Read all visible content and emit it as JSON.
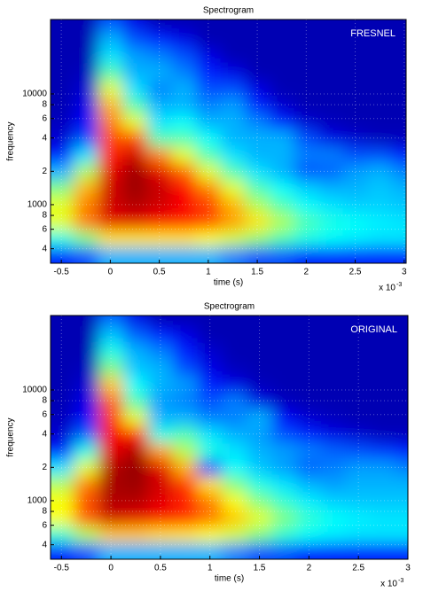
{
  "chart_data": [
    {
      "type": "heatmap",
      "title": "Spectrogram",
      "annotation": "FRESNEL",
      "x_label": "time (s)",
      "y_label": "frequency",
      "x_offset_label": "x 10",
      "x_offset_exponent": "-3",
      "colormap": "jet",
      "yscale": "log",
      "grid": true,
      "xlim": [
        -0.61,
        3.02
      ],
      "ylim": [
        296,
        47000
      ],
      "xticks": [
        -0.5,
        0,
        0.5,
        1,
        1.5,
        2,
        2.5,
        3
      ],
      "yticks": [
        {
          "value": 400,
          "label": "4"
        },
        {
          "value": 600,
          "label": "6"
        },
        {
          "value": 800,
          "label": "8"
        },
        1000,
        {
          "value": 2000,
          "label": "2"
        },
        {
          "value": 4000,
          "label": "4"
        },
        {
          "value": 6000,
          "label": "6"
        },
        {
          "value": 8000,
          "label": "8"
        },
        10000
      ],
      "x": [
        -0.5,
        -0.25,
        0,
        0.25,
        0.5,
        0.75,
        1,
        1.25,
        1.5,
        1.75,
        2,
        2.25,
        2.5,
        2.75,
        3
      ],
      "y": [
        350,
        500,
        700,
        1000,
        1400,
        2000,
        2800,
        4000,
        5600,
        8000,
        11000,
        16000,
        22000,
        32000,
        45000
      ],
      "z": [
        [
          0.15,
          0.2,
          0.3,
          0.3,
          0.3,
          0.3,
          0.3,
          0.25,
          0.2,
          0.2,
          0.15,
          0.15,
          0.15,
          0.15,
          0.15
        ],
        [
          0.4,
          0.5,
          0.65,
          0.65,
          0.65,
          0.65,
          0.62,
          0.58,
          0.52,
          0.45,
          0.4,
          0.38,
          0.36,
          0.35,
          0.35
        ],
        [
          0.6,
          0.75,
          0.9,
          0.9,
          0.88,
          0.85,
          0.8,
          0.72,
          0.65,
          0.55,
          0.45,
          0.4,
          0.38,
          0.36,
          0.35
        ],
        [
          0.6,
          0.75,
          0.92,
          0.95,
          0.92,
          0.88,
          0.82,
          0.7,
          0.55,
          0.45,
          0.38,
          0.35,
          0.33,
          0.33,
          0.32
        ],
        [
          0.5,
          0.7,
          0.92,
          0.97,
          0.93,
          0.87,
          0.75,
          0.6,
          0.45,
          0.38,
          0.33,
          0.3,
          0.3,
          0.32,
          0.3
        ],
        [
          0.3,
          0.55,
          0.9,
          0.97,
          0.9,
          0.78,
          0.6,
          0.45,
          0.35,
          0.3,
          0.2,
          0.22,
          0.28,
          0.3,
          0.25
        ],
        [
          0.15,
          0.35,
          0.85,
          0.92,
          0.75,
          0.6,
          0.45,
          0.35,
          0.3,
          0.3,
          0.25,
          0.25,
          0.2,
          0.2,
          0.15
        ],
        [
          0.08,
          0.2,
          0.8,
          0.8,
          0.45,
          0.45,
          0.38,
          0.3,
          0.3,
          0.3,
          0.2,
          0.1,
          0.08,
          0.06,
          0.06
        ],
        [
          0.06,
          0.12,
          0.75,
          0.6,
          0.35,
          0.38,
          0.3,
          0.3,
          0.25,
          0.15,
          0.08,
          0.06,
          0.05,
          0.05,
          0.05
        ],
        [
          0.05,
          0.1,
          0.7,
          0.45,
          0.3,
          0.3,
          0.25,
          0.28,
          0.15,
          0.08,
          0.05,
          0.05,
          0.05,
          0.05,
          0.05
        ],
        [
          0.05,
          0.08,
          0.6,
          0.35,
          0.25,
          0.3,
          0.2,
          0.2,
          0.1,
          0.05,
          0.05,
          0.05,
          0.05,
          0.05,
          0.05
        ],
        [
          0.05,
          0.06,
          0.45,
          0.3,
          0.3,
          0.25,
          0.15,
          0.1,
          0.05,
          0.05,
          0.05,
          0.05,
          0.05,
          0.05,
          0.05
        ],
        [
          0.05,
          0.05,
          0.35,
          0.28,
          0.25,
          0.2,
          0.1,
          0.05,
          0.05,
          0.05,
          0.05,
          0.05,
          0.05,
          0.05,
          0.05
        ],
        [
          0.05,
          0.05,
          0.3,
          0.2,
          0.15,
          0.1,
          0.05,
          0.05,
          0.05,
          0.05,
          0.05,
          0.05,
          0.05,
          0.05,
          0.05
        ],
        [
          0.05,
          0.05,
          0.2,
          0.1,
          0.05,
          0.05,
          0.05,
          0.05,
          0.05,
          0.05,
          0.05,
          0.05,
          0.05,
          0.05,
          0.05
        ]
      ]
    },
    {
      "type": "heatmap",
      "title": "Spectrogram",
      "annotation": "ORIGINAL",
      "x_label": "time (s)",
      "y_label": "frequency",
      "x_offset_label": "x 10",
      "x_offset_exponent": "-3",
      "colormap": "jet",
      "yscale": "log",
      "grid": true,
      "xlim": [
        -0.61,
        3.0
      ],
      "ylim": [
        296,
        47000
      ],
      "xticks": [
        -0.5,
        0,
        0.5,
        1,
        1.5,
        2,
        2.5,
        3
      ],
      "yticks": [
        {
          "value": 400,
          "label": "4"
        },
        {
          "value": 600,
          "label": "6"
        },
        {
          "value": 800,
          "label": "8"
        },
        1000,
        {
          "value": 2000,
          "label": "2"
        },
        {
          "value": 4000,
          "label": "4"
        },
        {
          "value": 6000,
          "label": "6"
        },
        {
          "value": 8000,
          "label": "8"
        },
        10000
      ],
      "x": [
        -0.5,
        -0.25,
        0,
        0.25,
        0.5,
        0.75,
        1,
        1.25,
        1.5,
        1.75,
        2,
        2.25,
        2.5,
        2.75,
        3
      ],
      "y": [
        350,
        500,
        700,
        1000,
        1400,
        2000,
        2800,
        4000,
        5600,
        8000,
        11000,
        16000,
        22000,
        32000,
        45000
      ],
      "z": [
        [
          0.15,
          0.2,
          0.3,
          0.3,
          0.3,
          0.3,
          0.3,
          0.25,
          0.2,
          0.2,
          0.15,
          0.15,
          0.15,
          0.15,
          0.15
        ],
        [
          0.42,
          0.55,
          0.68,
          0.68,
          0.66,
          0.65,
          0.62,
          0.58,
          0.5,
          0.42,
          0.38,
          0.36,
          0.35,
          0.35,
          0.35
        ],
        [
          0.62,
          0.78,
          0.92,
          0.9,
          0.88,
          0.83,
          0.76,
          0.68,
          0.6,
          0.5,
          0.42,
          0.38,
          0.36,
          0.35,
          0.35
        ],
        [
          0.62,
          0.8,
          0.95,
          0.95,
          0.9,
          0.85,
          0.75,
          0.62,
          0.5,
          0.42,
          0.36,
          0.33,
          0.32,
          0.32,
          0.32
        ],
        [
          0.55,
          0.75,
          0.96,
          0.97,
          0.92,
          0.82,
          0.65,
          0.5,
          0.4,
          0.35,
          0.3,
          0.28,
          0.3,
          0.3,
          0.3
        ],
        [
          0.35,
          0.6,
          0.95,
          0.98,
          0.9,
          0.7,
          0.15,
          0.38,
          0.32,
          0.28,
          0.22,
          0.25,
          0.28,
          0.28,
          0.25
        ],
        [
          0.15,
          0.4,
          0.9,
          0.95,
          0.72,
          0.55,
          0.4,
          0.35,
          0.3,
          0.28,
          0.25,
          0.22,
          0.2,
          0.18,
          0.15
        ],
        [
          0.08,
          0.22,
          0.88,
          0.85,
          0.4,
          0.45,
          0.35,
          0.3,
          0.28,
          0.2,
          0.15,
          0.1,
          0.08,
          0.06,
          0.06
        ],
        [
          0.06,
          0.12,
          0.82,
          0.6,
          0.3,
          0.3,
          0.25,
          0.25,
          0.3,
          0.12,
          0.08,
          0.06,
          0.05,
          0.05,
          0.05
        ],
        [
          0.05,
          0.1,
          0.78,
          0.45,
          0.28,
          0.25,
          0.2,
          0.25,
          0.1,
          0.06,
          0.05,
          0.05,
          0.05,
          0.05,
          0.05
        ],
        [
          0.05,
          0.08,
          0.68,
          0.38,
          0.3,
          0.28,
          0.15,
          0.1,
          0.06,
          0.05,
          0.05,
          0.05,
          0.05,
          0.05,
          0.05
        ],
        [
          0.05,
          0.06,
          0.5,
          0.32,
          0.3,
          0.2,
          0.1,
          0.06,
          0.05,
          0.05,
          0.05,
          0.05,
          0.05,
          0.05,
          0.05
        ],
        [
          0.05,
          0.05,
          0.4,
          0.3,
          0.25,
          0.15,
          0.08,
          0.05,
          0.05,
          0.05,
          0.05,
          0.05,
          0.05,
          0.05,
          0.05
        ],
        [
          0.05,
          0.05,
          0.32,
          0.22,
          0.15,
          0.1,
          0.05,
          0.05,
          0.05,
          0.05,
          0.05,
          0.05,
          0.05,
          0.05,
          0.05
        ],
        [
          0.05,
          0.05,
          0.22,
          0.1,
          0.05,
          0.05,
          0.05,
          0.05,
          0.05,
          0.05,
          0.05,
          0.05,
          0.05,
          0.05,
          0.05
        ]
      ]
    }
  ]
}
